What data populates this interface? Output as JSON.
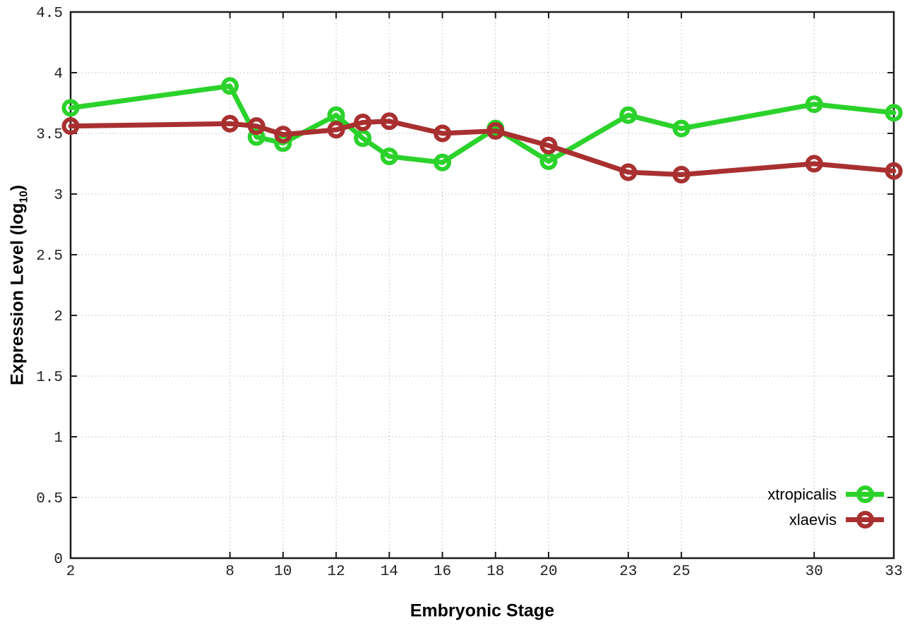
{
  "chart_data": {
    "type": "line",
    "title": "",
    "xlabel": "Embryonic Stage",
    "ylabel_main": "Expression Level (log",
    "ylabel_sub": "10",
    "ylabel_close": ")",
    "x": [
      2,
      8,
      9,
      10,
      12,
      13,
      14,
      16,
      18,
      20,
      23,
      25,
      30,
      33
    ],
    "series": [
      {
        "name": "xtropicalis",
        "color": "#2bd22b",
        "values": [
          3.71,
          3.89,
          3.47,
          3.42,
          3.65,
          3.46,
          3.31,
          3.26,
          3.54,
          3.27,
          3.65,
          3.54,
          3.74,
          3.67
        ]
      },
      {
        "name": "xlaevis",
        "color": "#a93030",
        "values": [
          3.56,
          3.58,
          3.56,
          3.49,
          3.53,
          3.59,
          3.6,
          3.5,
          3.52,
          3.4,
          3.18,
          3.16,
          3.25,
          3.19
        ]
      }
    ],
    "xlim": [
      2,
      33
    ],
    "ylim": [
      0,
      4.5
    ],
    "xticks": [
      2,
      8,
      10,
      12,
      14,
      16,
      18,
      20,
      23,
      25,
      30,
      33
    ],
    "yticks": [
      0,
      0.5,
      1,
      1.5,
      2,
      2.5,
      3,
      3.5,
      4,
      4.5
    ],
    "ytick_labels": [
      "0",
      "0.5",
      "1",
      "1.5",
      "2",
      "2.5",
      "3",
      "3.5",
      "4",
      "4.5"
    ],
    "grid": true,
    "legend_position": "bottom-right",
    "marker": "open-circle"
  }
}
